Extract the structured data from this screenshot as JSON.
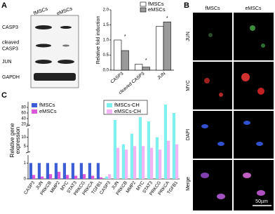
{
  "panel_labels": [
    "A",
    "B",
    "C"
  ],
  "blot": {
    "columns": [
      "fMSCs",
      "eMSCs"
    ],
    "rows": [
      [
        "CASP3"
      ],
      [
        "cleaved",
        "CASP3"
      ],
      [
        "JUN"
      ],
      [
        "GAPDH"
      ]
    ]
  },
  "micrographs": {
    "columns": [
      "fMSCs",
      "eMSCs"
    ],
    "rows": [
      "JUN",
      "MYC",
      "DAPI",
      "Merge"
    ],
    "scale_bar": "50µm"
  },
  "chart_data": [
    {
      "type": "bar",
      "ylabel": "Relative fold induction",
      "categories": [
        "CASP3",
        "cleaved CASP3",
        "JUN"
      ],
      "series": [
        {
          "name": "fMSCs",
          "color": "#ffffff",
          "values": [
            1.0,
            0.2,
            1.45
          ]
        },
        {
          "name": "eMSCs",
          "color": "#9a9a9a",
          "values": [
            0.65,
            0.1,
            1.6
          ]
        }
      ],
      "significance": [
        "*",
        "*",
        "*"
      ],
      "ylim": [
        0,
        2
      ],
      "yticks": [
        {
          "value": 0,
          "label": "0.0"
        },
        {
          "value": 0.5,
          "label": "0.5"
        },
        {
          "value": 1,
          "label": "1.0"
        },
        {
          "value": 1.5,
          "label": "1.5"
        },
        {
          "value": 2,
          "label": "2.0"
        }
      ],
      "legend": "top-right"
    },
    {
      "type": "bar",
      "ylabel": [
        "Relative gene",
        "expression"
      ],
      "categories": [
        "CASP3",
        "JUN",
        "PRKCB",
        "MMP2",
        "MYC",
        "STAT3",
        "PRKCG",
        "PRKCA",
        "TGFB1",
        "CASP3",
        "JUN",
        "PRKCB",
        "MMP2",
        "MYC",
        "STAT3",
        "PRKCG",
        "PRKCA",
        "TGFB1"
      ],
      "series": [
        {
          "name": "fMSCs",
          "color": "#3d5fd6",
          "values": [
            1,
            1,
            1,
            1,
            1,
            1,
            1,
            1,
            1,
            null,
            null,
            null,
            null,
            null,
            null,
            null,
            null,
            null
          ]
        },
        {
          "name": "eMSCs",
          "color": "#d957d9",
          "values": [
            0.25,
            0.15,
            0.3,
            0.45,
            0.25,
            0.2,
            0.3,
            0.2,
            0.1,
            null,
            null,
            null,
            null,
            null,
            null,
            null,
            null,
            null
          ]
        },
        {
          "name": "fMSCs-CH",
          "color": "#7ff0f0",
          "values": [
            null,
            null,
            null,
            null,
            null,
            null,
            null,
            null,
            null,
            0.15,
            35,
            6,
            12,
            45,
            30,
            10,
            90,
            60
          ]
        },
        {
          "name": "eMSCs-CH",
          "color": "#f2b4f2",
          "values": [
            null,
            null,
            null,
            null,
            null,
            null,
            null,
            null,
            null,
            0.3,
            4,
            3,
            5,
            5,
            4,
            3,
            8,
            6
          ]
        }
      ],
      "ylim": [
        0,
        100
      ],
      "ysegments": [
        [
          0,
          1.5
        ],
        [
          1.5,
          15
        ],
        [
          15,
          100
        ]
      ],
      "yticks": [
        0,
        1,
        5,
        10,
        20,
        40,
        60,
        80
      ]
    }
  ]
}
